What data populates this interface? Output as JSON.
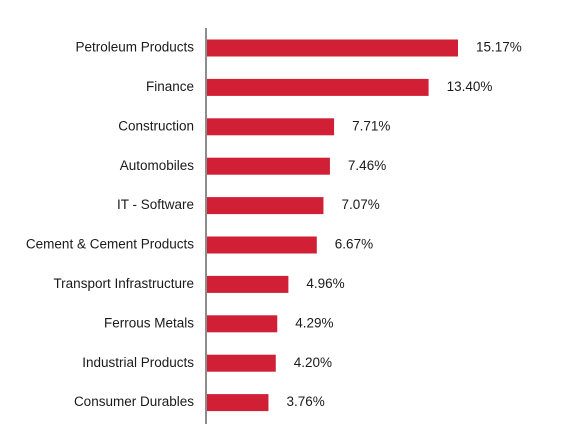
{
  "chart_data": {
    "type": "bar",
    "orientation": "horizontal",
    "categories": [
      "Petroleum Products",
      "Finance",
      "Construction",
      "Automobiles",
      "IT - Software",
      "Cement & Cement Products",
      "Transport Infrastructure",
      "Ferrous Metals",
      "Industrial Products",
      "Consumer Durables"
    ],
    "values": [
      15.17,
      13.4,
      7.71,
      7.46,
      7.07,
      6.67,
      4.96,
      4.29,
      4.2,
      3.76
    ],
    "value_labels": [
      "15.17%",
      "13.40%",
      "7.71%",
      "7.46%",
      "7.07%",
      "6.67%",
      "4.96%",
      "4.29%",
      "4.20%",
      "3.76%"
    ],
    "xlim": [
      0,
      15.17
    ],
    "grid": false,
    "bar_color": "#d11f35",
    "axis_color": "#8c8c8c"
  }
}
